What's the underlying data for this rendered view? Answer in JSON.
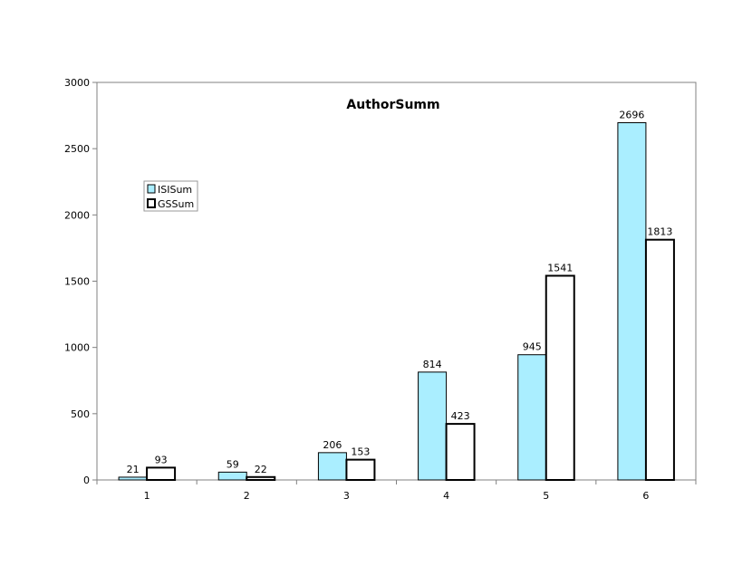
{
  "chart_data": {
    "type": "bar",
    "title": "AuthorSumm",
    "xlabel": "",
    "ylabel": "",
    "categories": [
      "1",
      "2",
      "3",
      "4",
      "5",
      "6"
    ],
    "series": [
      {
        "name": "ISISum",
        "values": [
          21,
          59,
          206,
          814,
          945,
          2696
        ],
        "color": "#aaeeff"
      },
      {
        "name": "GSSum",
        "values": [
          93,
          22,
          153,
          423,
          1541,
          1813
        ],
        "color": "#ffffff"
      }
    ],
    "ylim": [
      0,
      3000
    ],
    "yticks": [
      "0",
      "500",
      "1000",
      "1500",
      "2000",
      "2500",
      "3000"
    ],
    "grid": false,
    "legend": "upper-left",
    "data_labels": true
  }
}
